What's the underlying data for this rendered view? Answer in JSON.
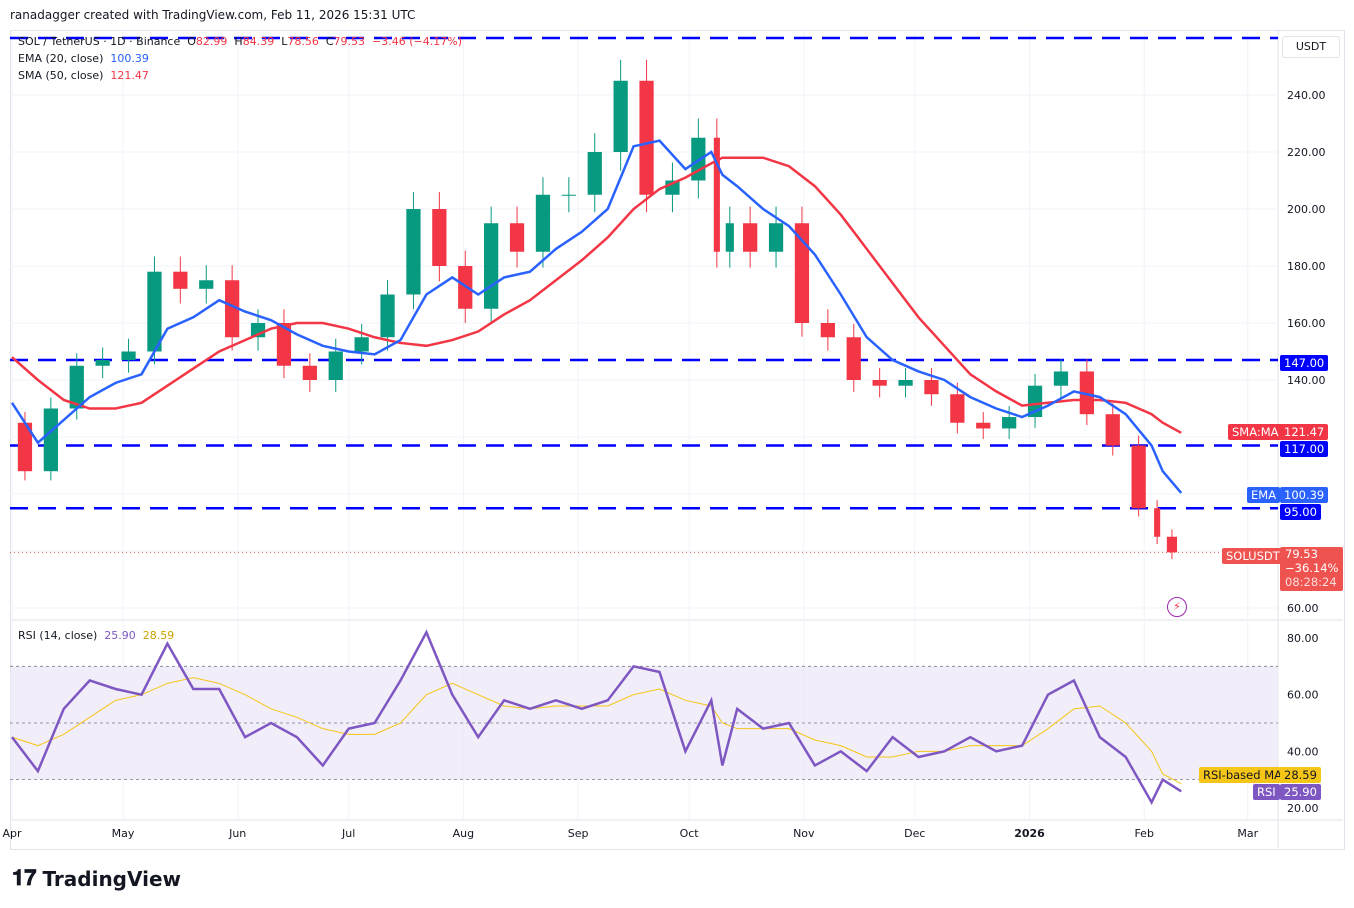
{
  "credit": "ranadagger created with TradingView.com, Feb 11, 2026 15:31 UTC",
  "legend": {
    "symbol": "SOL / TetherUS · 1D · Binance",
    "o_label": "O",
    "o": "82.99",
    "h_label": "H",
    "h": "84.39",
    "l_label": "L",
    "l": "78.56",
    "c_label": "C",
    "c": "79.53",
    "change": "−3.46 (−4.17%)",
    "ema": "EMA (20, close)",
    "ema_val": "100.39",
    "sma": "SMA (50, close)",
    "sma_val": "121.47",
    "rsi": "RSI (14, close)",
    "rsi_val": "25.90",
    "rsi_ma_val": "28.59"
  },
  "axis": {
    "currency": "USDT",
    "price_ticks": [
      60,
      80,
      100,
      120,
      140,
      160,
      180,
      200,
      220,
      240
    ],
    "price_tick_labels": [
      "60.00",
      "140.00",
      "160.00",
      "180.00",
      "200.00",
      "220.00",
      "240.00"
    ],
    "rsi_ticks": [
      "20.00",
      "40.00",
      "60.00",
      "80.00"
    ],
    "months": [
      {
        "label": "Apr",
        "date": "2025-04-01"
      },
      {
        "label": "May",
        "date": "2025-05-01"
      },
      {
        "label": "Jun",
        "date": "2025-06-01"
      },
      {
        "label": "Jul",
        "date": "2025-07-01"
      },
      {
        "label": "Aug",
        "date": "2025-08-01"
      },
      {
        "label": "Sep",
        "date": "2025-09-01"
      },
      {
        "label": "Oct",
        "date": "2025-10-01"
      },
      {
        "label": "Nov",
        "date": "2025-11-01"
      },
      {
        "label": "Dec",
        "date": "2025-12-01"
      },
      {
        "label": "2026",
        "date": "2026-01-01"
      },
      {
        "label": "Feb",
        "date": "2026-02-01"
      },
      {
        "label": "Mar",
        "date": "2026-03-01"
      }
    ]
  },
  "tags": {
    "sma_name": "SMA:MA",
    "sma": "121.47",
    "ema_name": "EMA",
    "ema": "100.39",
    "l147": "147.00",
    "l117": "117.00",
    "l95": "95.00",
    "sym": "SOLUSDT",
    "price": "79.53",
    "pct": "−36.14%",
    "countdown": "08:28:24",
    "rsi_ma_name": "RSI-based MA",
    "rsi_ma": "28.59",
    "rsi_name": "RSI",
    "rsi": "25.90"
  },
  "colors": {
    "up": "#089981",
    "down": "#f23645",
    "ema": "#2962ff",
    "sma": "#f23645",
    "level": "#0000ff",
    "rsi": "#7e57c2",
    "rsi_ma": "#f5c518",
    "rsi_band": "#ede7f6"
  },
  "brand": "TradingView",
  "chart_data": {
    "type": "candlestick",
    "price_range": [
      55,
      262
    ],
    "rsi_range": [
      12,
      88
    ],
    "levels": [
      260,
      147,
      117,
      95
    ],
    "rsi_bands": [
      30,
      50,
      70
    ],
    "dates": [
      "2025-04-01",
      "2025-04-08",
      "2025-04-15",
      "2025-04-22",
      "2025-04-29",
      "2025-05-06",
      "2025-05-13",
      "2025-05-20",
      "2025-05-27",
      "2025-06-03",
      "2025-06-10",
      "2025-06-17",
      "2025-06-24",
      "2025-07-01",
      "2025-07-08",
      "2025-07-15",
      "2025-07-22",
      "2025-07-29",
      "2025-08-05",
      "2025-08-12",
      "2025-08-19",
      "2025-08-26",
      "2025-09-02",
      "2025-09-09",
      "2025-09-16",
      "2025-09-23",
      "2025-09-30",
      "2025-10-07",
      "2025-10-10",
      "2025-10-14",
      "2025-10-21",
      "2025-10-28",
      "2025-11-04",
      "2025-11-11",
      "2025-11-18",
      "2025-11-25",
      "2025-12-02",
      "2025-12-09",
      "2025-12-16",
      "2025-12-23",
      "2025-12-30",
      "2026-01-06",
      "2026-01-13",
      "2026-01-20",
      "2026-01-27",
      "2026-02-03",
      "2026-02-06",
      "2026-02-11"
    ],
    "close": [
      125,
      108,
      130,
      145,
      147,
      150,
      178,
      172,
      175,
      155,
      160,
      145,
      140,
      150,
      155,
      170,
      200,
      180,
      165,
      195,
      185,
      205,
      205,
      220,
      245,
      205,
      210,
      225,
      185,
      195,
      185,
      195,
      160,
      155,
      140,
      138,
      140,
      135,
      125,
      123,
      127,
      138,
      143,
      128,
      117,
      95,
      85,
      79.53
    ],
    "ema20": [
      132,
      118,
      126,
      134,
      139,
      142,
      158,
      162,
      168,
      164,
      161,
      156,
      152,
      150,
      149,
      154,
      170,
      176,
      170,
      176,
      178,
      186,
      192,
      200,
      222,
      224,
      214,
      220,
      212,
      208,
      200,
      194,
      184,
      170,
      155,
      147,
      143,
      140,
      134,
      130,
      127,
      131,
      136,
      134,
      128,
      117,
      108,
      100.39
    ],
    "sma50": [
      148,
      140,
      133,
      130,
      130,
      132,
      138,
      144,
      150,
      154,
      158,
      160,
      160,
      158,
      155,
      153,
      152,
      154,
      157,
      163,
      168,
      175,
      182,
      190,
      200,
      207,
      211,
      216,
      218,
      218,
      218,
      215,
      208,
      198,
      186,
      174,
      162,
      152,
      142,
      136,
      131,
      132,
      133,
      133,
      132,
      128,
      125,
      121.47
    ],
    "rsi": [
      45,
      33,
      55,
      65,
      62,
      60,
      78,
      62,
      62,
      45,
      50,
      45,
      35,
      48,
      50,
      65,
      82,
      60,
      45,
      58,
      55,
      58,
      55,
      58,
      70,
      68,
      40,
      58,
      35,
      55,
      48,
      50,
      35,
      40,
      33,
      45,
      38,
      40,
      45,
      40,
      42,
      60,
      65,
      45,
      38,
      22,
      30,
      25.9
    ],
    "rsi_ma": [
      45,
      42,
      46,
      52,
      58,
      60,
      64,
      66,
      64,
      60,
      55,
      52,
      48,
      46,
      46,
      50,
      60,
      64,
      60,
      56,
      55,
      56,
      56,
      56,
      60,
      62,
      58,
      56,
      50,
      48,
      48,
      48,
      44,
      42,
      38,
      38,
      40,
      40,
      42,
      42,
      42,
      48,
      55,
      56,
      50,
      40,
      32,
      28.59
    ]
  }
}
